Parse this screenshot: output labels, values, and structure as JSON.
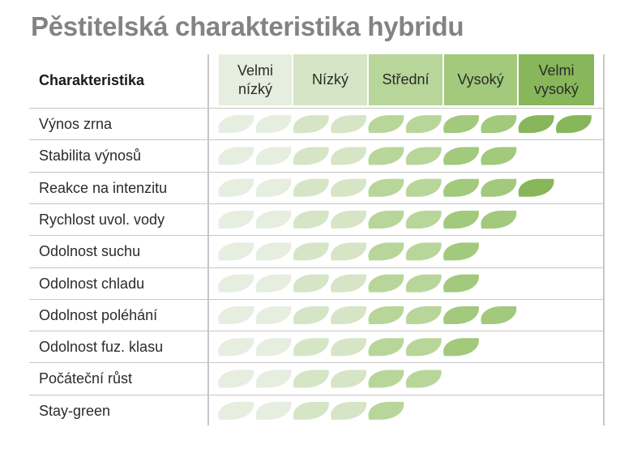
{
  "title": "Pěstitelská charakteristika hybridu",
  "chart_data": {
    "type": "table",
    "row_header": "Charakteristika",
    "levels": [
      {
        "label": "Velmi\nnízký",
        "color": "#e6eedf"
      },
      {
        "label": "Nízký",
        "color": "#d5e5c6"
      },
      {
        "label": "Střední",
        "color": "#b8d699"
      },
      {
        "label": "Vysoký",
        "color": "#a2c97c"
      },
      {
        "label": "Velmi\nvysoký",
        "color": "#87b75a"
      }
    ],
    "leaf_colors": [
      "#e6eedf",
      "#e6eedf",
      "#d5e5c6",
      "#d5e5c6",
      "#b8d699",
      "#b8d699",
      "#a2c97c",
      "#a2c97c",
      "#87b75a",
      "#87b75a"
    ],
    "rows": [
      {
        "label": "Výnos zrna",
        "value": 10
      },
      {
        "label": "Stabilita výnosů",
        "value": 8
      },
      {
        "label": "Reakce na intenzitu",
        "value": 9
      },
      {
        "label": "Rychlost uvol. vody",
        "value": 8
      },
      {
        "label": "Odolnost suchu",
        "value": 7
      },
      {
        "label": "Odolnost chladu",
        "value": 7
      },
      {
        "label": "Odolnost poléhání",
        "value": 8
      },
      {
        "label": "Odolnost fuz. klasu",
        "value": 7
      },
      {
        "label": "Počáteční růst",
        "value": 6
      },
      {
        "label": "Stay-green",
        "value": 5
      }
    ],
    "scale_max": 10
  }
}
